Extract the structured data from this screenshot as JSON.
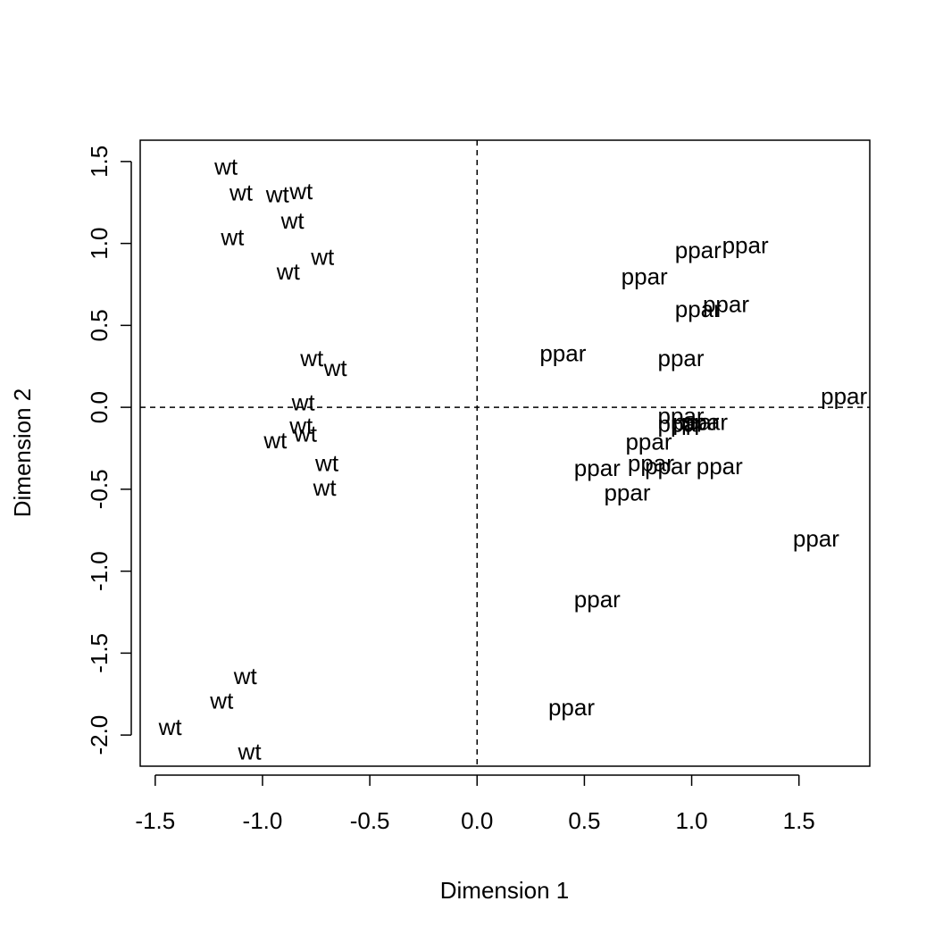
{
  "chart_data": {
    "type": "scatter",
    "title": "",
    "xlabel": "Dimension  1",
    "ylabel": "Dimension  2",
    "xlim": [
      -1.57,
      1.83
    ],
    "ylim": [
      -2.19,
      1.63
    ],
    "xticks": [
      -1.5,
      -1.0,
      -0.5,
      0.0,
      0.5,
      1.0,
      1.5
    ],
    "xtick_labels": [
      "-1.5",
      "-1.0",
      "-0.5",
      "0.0",
      "0.5",
      "1.0",
      "1.5"
    ],
    "yticks": [
      -2.0,
      -1.5,
      -1.0,
      -0.5,
      0.0,
      0.5,
      1.0,
      1.5
    ],
    "ytick_labels": [
      "-2.0",
      "-1.5",
      "-1.0",
      "-0.5",
      "0.0",
      "0.5",
      "1.0",
      "1.5"
    ],
    "reference_lines": {
      "x": 0,
      "y": 0,
      "style": "dashed"
    },
    "grid": false,
    "point_style": "text labels",
    "series": [
      {
        "name": "wt",
        "points": [
          {
            "x": -1.17,
            "y": 1.47
          },
          {
            "x": -1.1,
            "y": 1.31
          },
          {
            "x": -0.93,
            "y": 1.3
          },
          {
            "x": -0.82,
            "y": 1.32
          },
          {
            "x": -0.86,
            "y": 1.14
          },
          {
            "x": -1.14,
            "y": 1.04
          },
          {
            "x": -0.72,
            "y": 0.92
          },
          {
            "x": -0.88,
            "y": 0.83
          },
          {
            "x": -0.77,
            "y": 0.3
          },
          {
            "x": -0.66,
            "y": 0.24
          },
          {
            "x": -0.81,
            "y": 0.03
          },
          {
            "x": -0.82,
            "y": -0.11
          },
          {
            "x": -0.8,
            "y": -0.16
          },
          {
            "x": -0.94,
            "y": -0.2
          },
          {
            "x": -0.7,
            "y": -0.34
          },
          {
            "x": -0.71,
            "y": -0.49
          },
          {
            "x": -1.08,
            "y": -1.64
          },
          {
            "x": -1.19,
            "y": -1.79
          },
          {
            "x": -1.43,
            "y": -1.95
          },
          {
            "x": -1.06,
            "y": -2.1
          }
        ]
      },
      {
        "name": "ppar",
        "points": [
          {
            "x": 1.03,
            "y": 0.96
          },
          {
            "x": 1.25,
            "y": 0.99
          },
          {
            "x": 0.78,
            "y": 0.8
          },
          {
            "x": 1.03,
            "y": 0.6
          },
          {
            "x": 1.16,
            "y": 0.63
          },
          {
            "x": 0.4,
            "y": 0.33
          },
          {
            "x": 0.95,
            "y": 0.3
          },
          {
            "x": 1.71,
            "y": 0.07
          },
          {
            "x": 0.95,
            "y": -0.05
          },
          {
            "x": 0.95,
            "y": -0.1
          },
          {
            "x": 1.02,
            "y": -0.09
          },
          {
            "x": 1.06,
            "y": -0.09
          },
          {
            "x": 0.8,
            "y": -0.21
          },
          {
            "x": 0.81,
            "y": -0.34
          },
          {
            "x": 0.89,
            "y": -0.36
          },
          {
            "x": 1.13,
            "y": -0.36
          },
          {
            "x": 0.56,
            "y": -0.37
          },
          {
            "x": 0.7,
            "y": -0.52
          },
          {
            "x": 1.58,
            "y": -0.8
          },
          {
            "x": 0.56,
            "y": -1.17
          },
          {
            "x": 0.44,
            "y": -1.83
          }
        ]
      }
    ]
  }
}
